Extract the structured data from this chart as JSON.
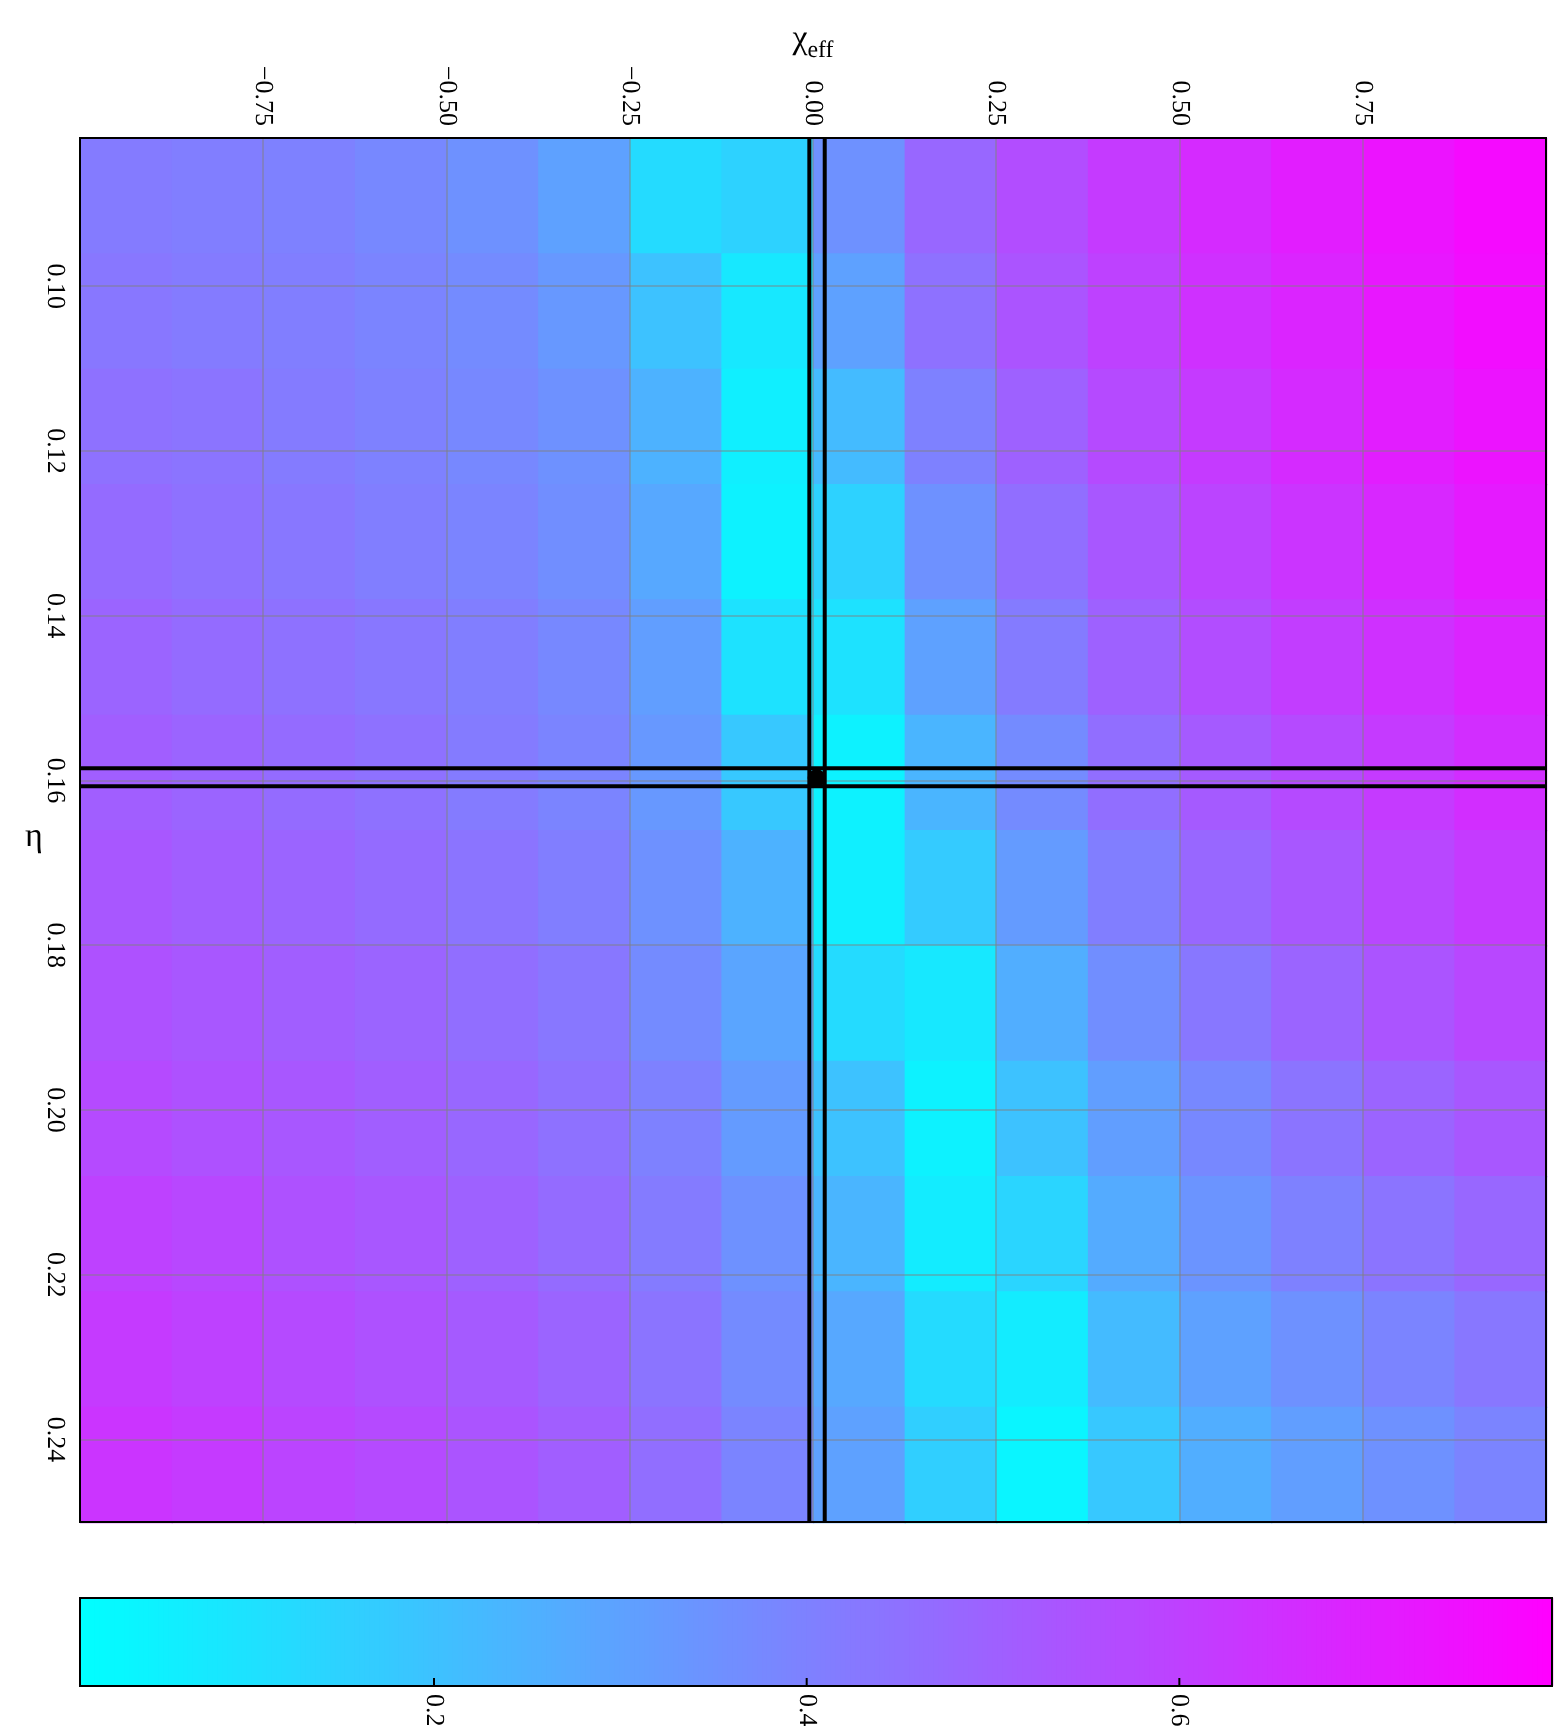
{
  "chart_data": {
    "type": "heatmap",
    "xlabel": "χ$_{eff}$",
    "ylabel": "η",
    "x": [
      -0.9375,
      -0.8125,
      -0.6875,
      -0.5625,
      -0.4375,
      -0.3125,
      -0.1875,
      -0.0625,
      0.0625,
      0.1875,
      0.3125,
      0.4375,
      0.5625,
      0.6875,
      0.8125,
      0.9375
    ],
    "y": [
      0.089,
      0.103,
      0.117,
      0.131,
      0.145,
      0.159,
      0.173,
      0.187,
      0.201,
      0.215,
      0.229,
      0.243
    ],
    "cells": [
      [
        0.42,
        0.41,
        0.4,
        0.38,
        0.35,
        0.3,
        0.12,
        0.15,
        0.35,
        0.48,
        0.56,
        0.62,
        0.67,
        0.71,
        0.74,
        0.77
      ],
      [
        0.43,
        0.42,
        0.41,
        0.39,
        0.37,
        0.33,
        0.2,
        0.08,
        0.3,
        0.45,
        0.54,
        0.6,
        0.65,
        0.69,
        0.73,
        0.76
      ],
      [
        0.45,
        0.44,
        0.42,
        0.4,
        0.38,
        0.35,
        0.25,
        0.06,
        0.22,
        0.4,
        0.5,
        0.57,
        0.62,
        0.67,
        0.71,
        0.74
      ],
      [
        0.47,
        0.45,
        0.43,
        0.41,
        0.39,
        0.36,
        0.28,
        0.05,
        0.15,
        0.35,
        0.46,
        0.53,
        0.59,
        0.64,
        0.68,
        0.72
      ],
      [
        0.49,
        0.47,
        0.45,
        0.43,
        0.41,
        0.38,
        0.31,
        0.1,
        0.1,
        0.3,
        0.42,
        0.5,
        0.56,
        0.61,
        0.65,
        0.69
      ],
      [
        0.51,
        0.49,
        0.47,
        0.45,
        0.42,
        0.39,
        0.33,
        0.18,
        0.05,
        0.24,
        0.37,
        0.46,
        0.52,
        0.57,
        0.62,
        0.66
      ],
      [
        0.53,
        0.51,
        0.49,
        0.47,
        0.44,
        0.41,
        0.35,
        0.25,
        0.06,
        0.17,
        0.32,
        0.41,
        0.48,
        0.53,
        0.58,
        0.62
      ],
      [
        0.55,
        0.53,
        0.51,
        0.49,
        0.46,
        0.43,
        0.37,
        0.29,
        0.12,
        0.08,
        0.26,
        0.36,
        0.43,
        0.49,
        0.54,
        0.58
      ],
      [
        0.57,
        0.55,
        0.53,
        0.51,
        0.48,
        0.45,
        0.4,
        0.32,
        0.2,
        0.05,
        0.2,
        0.31,
        0.38,
        0.44,
        0.49,
        0.53
      ],
      [
        0.6,
        0.58,
        0.55,
        0.53,
        0.5,
        0.47,
        0.42,
        0.35,
        0.24,
        0.07,
        0.14,
        0.27,
        0.34,
        0.4,
        0.44,
        0.48
      ],
      [
        0.62,
        0.6,
        0.57,
        0.55,
        0.52,
        0.49,
        0.44,
        0.37,
        0.28,
        0.12,
        0.07,
        0.22,
        0.3,
        0.35,
        0.39,
        0.43
      ],
      [
        0.64,
        0.62,
        0.59,
        0.57,
        0.54,
        0.51,
        0.46,
        0.39,
        0.3,
        0.16,
        0.04,
        0.18,
        0.26,
        0.31,
        0.35,
        0.39
      ]
    ],
    "series": [
      {
        "type": "scatter",
        "x": [
          0.005
        ],
        "values": [
          0.1597
        ],
        "color": "#000000"
      }
    ],
    "marker": "circle",
    "xlim": [
      -1,
      1
    ],
    "xticks": [
      {
        "value": -0.75,
        "label": "−0.75"
      },
      {
        "value": -0.5,
        "label": "−0.50"
      },
      {
        "value": -0.25,
        "label": "−0.25"
      },
      {
        "value": 0,
        "label": "0.00"
      },
      {
        "value": 0.25,
        "label": "0.25"
      },
      {
        "value": 0.5,
        "label": "0.50"
      },
      {
        "value": 0.75,
        "label": "0.75"
      }
    ],
    "ylim": [
      0.25,
      0.082
    ],
    "yticks": [
      {
        "value": 0.1,
        "label": "0.10"
      },
      {
        "value": 0.12,
        "label": "0.12"
      },
      {
        "value": 0.14,
        "label": "0.14"
      },
      {
        "value": 0.16,
        "label": "0.16"
      },
      {
        "value": 0.18,
        "label": "0.18"
      },
      {
        "value": 0.2,
        "label": "0.20"
      },
      {
        "value": 0.22,
        "label": "0.22"
      },
      {
        "value": 0.24,
        "label": "0.24"
      }
    ],
    "ref_lines": [
      {
        "axis": "x",
        "value": -0.005,
        "color": "#000000"
      },
      {
        "axis": "x",
        "value": 0.016,
        "color": "#000000"
      },
      {
        "axis": "y",
        "value": 0.1585,
        "color": "#000000"
      },
      {
        "axis": "y",
        "value": 0.1607,
        "color": "#000000"
      }
    ],
    "clim": [
      0.01,
      0.8
    ],
    "cticks": [
      0.2,
      0.4,
      0.6
    ],
    "grid": true
  }
}
